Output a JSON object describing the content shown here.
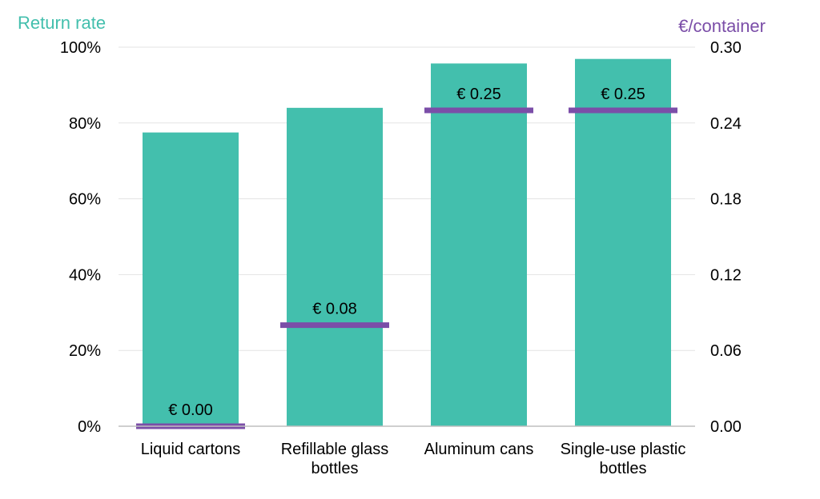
{
  "chart_data": {
    "type": "bar",
    "categories": [
      [
        "Liquid cartons"
      ],
      [
        "Refillable glass",
        "bottles"
      ],
      [
        "Aluminum cans"
      ],
      [
        "Single-use plastic",
        "bottles"
      ]
    ],
    "series": [
      {
        "values": [
          77.5,
          84,
          95.7,
          96.9
        ],
        "axis": "left",
        "kind": "bar"
      },
      {
        "values": [
          0.0,
          0.08,
          0.25,
          0.25
        ],
        "axis": "right",
        "kind": "marker",
        "labels": [
          "€ 0.00",
          "€ 0.08",
          "€ 0.25",
          "€ 0.25"
        ]
      }
    ],
    "y_left": {
      "label": "Return rate",
      "range": [
        0,
        100
      ],
      "ticks": [
        "0%",
        "20%",
        "40%",
        "60%",
        "80%",
        "100%"
      ]
    },
    "y_right": {
      "label": "€/container",
      "range": [
        0,
        0.3
      ],
      "ticks": [
        "0.00",
        "0.06",
        "0.12",
        "0.18",
        "0.24",
        "0.30"
      ]
    },
    "grid": true,
    "legend": "none",
    "colors": {
      "bar": "#43bfad",
      "marker": "#7b4ea8",
      "grid": "#e3e3e3",
      "left_title": "#43bfad",
      "right_title": "#7b4ea8"
    }
  }
}
